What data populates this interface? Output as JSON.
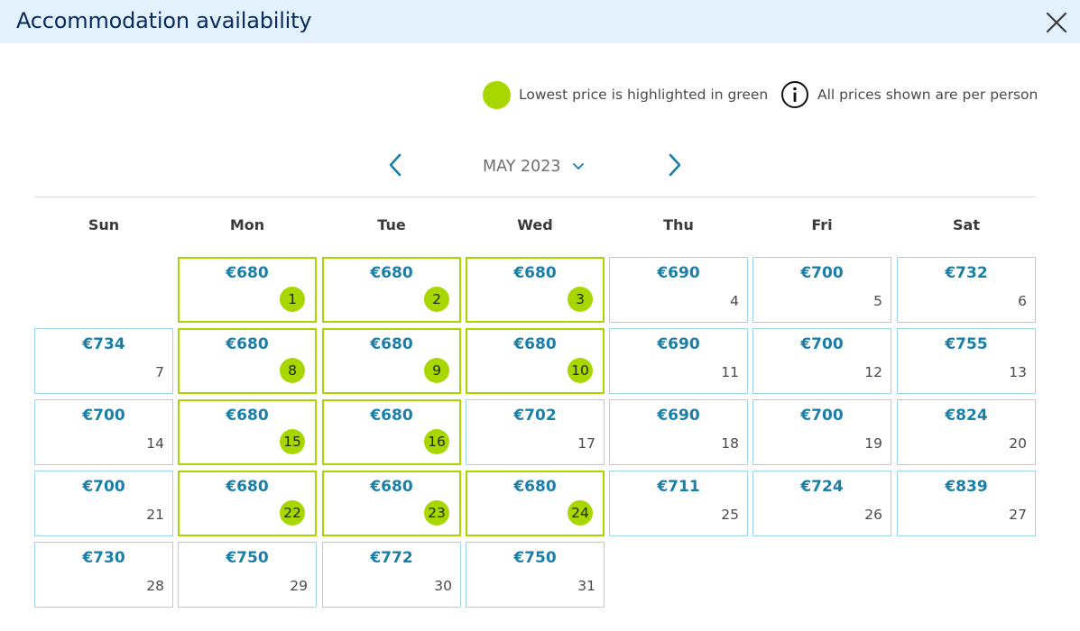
{
  "header": {
    "title": "Accommodation availability"
  },
  "legend": {
    "lowest_label": "Lowest price is highlighted in green",
    "info_label": "All prices shown are per person"
  },
  "navigation": {
    "month_label": "MAY 2023"
  },
  "colors": {
    "highlight_green": "#a8d700",
    "price_blue": "#1a7fa8",
    "cell_border": "#9ed4ea",
    "header_bg": "#e2f1fb"
  },
  "calendar": {
    "weekdays": [
      "Sun",
      "Mon",
      "Tue",
      "Wed",
      "Thu",
      "Fri",
      "Sat"
    ],
    "days": [
      {
        "day": "1",
        "price": "€680",
        "lowest": true
      },
      {
        "day": "2",
        "price": "€680",
        "lowest": true
      },
      {
        "day": "3",
        "price": "€680",
        "lowest": true
      },
      {
        "day": "4",
        "price": "€690",
        "lowest": false
      },
      {
        "day": "5",
        "price": "€700",
        "lowest": false
      },
      {
        "day": "6",
        "price": "€732",
        "lowest": false
      },
      {
        "day": "7",
        "price": "€734",
        "lowest": false
      },
      {
        "day": "8",
        "price": "€680",
        "lowest": true
      },
      {
        "day": "9",
        "price": "€680",
        "lowest": true
      },
      {
        "day": "10",
        "price": "€680",
        "lowest": true
      },
      {
        "day": "11",
        "price": "€690",
        "lowest": false
      },
      {
        "day": "12",
        "price": "€700",
        "lowest": false
      },
      {
        "day": "13",
        "price": "€755",
        "lowest": false
      },
      {
        "day": "14",
        "price": "€700",
        "lowest": false
      },
      {
        "day": "15",
        "price": "€680",
        "lowest": true
      },
      {
        "day": "16",
        "price": "€680",
        "lowest": true
      },
      {
        "day": "17",
        "price": "€702",
        "lowest": false
      },
      {
        "day": "18",
        "price": "€690",
        "lowest": false
      },
      {
        "day": "19",
        "price": "€700",
        "lowest": false
      },
      {
        "day": "20",
        "price": "€824",
        "lowest": false
      },
      {
        "day": "21",
        "price": "€700",
        "lowest": false
      },
      {
        "day": "22",
        "price": "€680",
        "lowest": true
      },
      {
        "day": "23",
        "price": "€680",
        "lowest": true
      },
      {
        "day": "24",
        "price": "€680",
        "lowest": true
      },
      {
        "day": "25",
        "price": "€711",
        "lowest": false
      },
      {
        "day": "26",
        "price": "€724",
        "lowest": false
      },
      {
        "day": "27",
        "price": "€839",
        "lowest": false
      },
      {
        "day": "28",
        "price": "€730",
        "lowest": false
      },
      {
        "day": "29",
        "price": "€750",
        "lowest": false
      },
      {
        "day": "30",
        "price": "€772",
        "lowest": false
      },
      {
        "day": "31",
        "price": "€750",
        "lowest": false
      }
    ]
  }
}
